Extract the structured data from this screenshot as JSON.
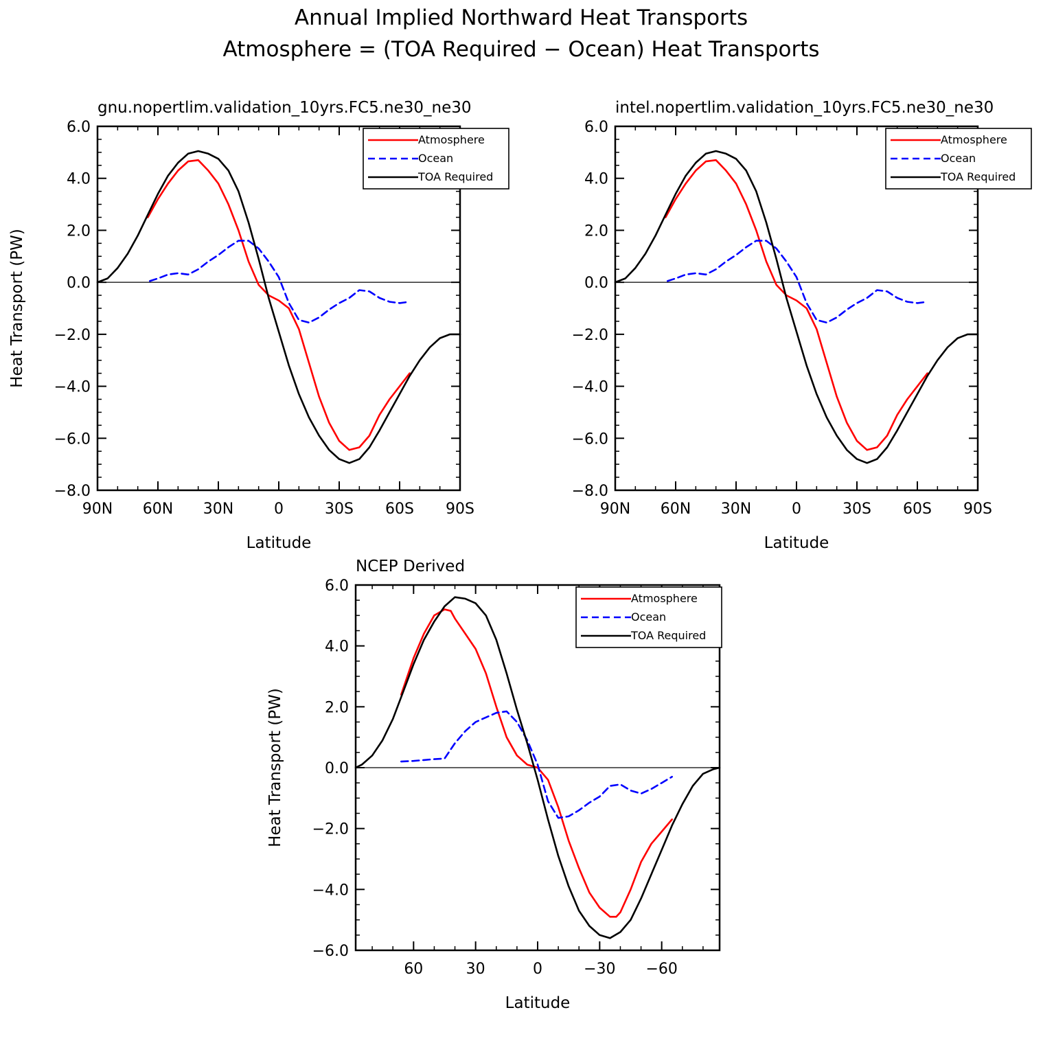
{
  "figure_title": [
    "Annual Implied Northward Heat Transports",
    "Atmosphere = (TOA Required − Ocean) Heat Transports"
  ],
  "legend_labels": [
    "Atmosphere",
    "Ocean",
    "TOA Required"
  ],
  "colors": {
    "atmosphere": "#ff0000",
    "ocean": "#0000ff",
    "toa": "#000000"
  },
  "chart_data": [
    {
      "type": "line",
      "title": "gnu.nopertlim.validation_10yrs.FC5.ne30_ne30",
      "xlabel": "Latitude",
      "ylabel": "Heat Transport (PW)",
      "xlim": [
        90,
        -90
      ],
      "ylim": [
        -8,
        6
      ],
      "xticks": [
        90,
        60,
        30,
        0,
        -30,
        -60,
        -90
      ],
      "xtick_labels": [
        "90N",
        "60N",
        "30N",
        "0",
        "30S",
        "60S",
        "90S"
      ],
      "yticks": [
        6,
        4,
        2,
        0,
        -2,
        -4,
        -6,
        -8
      ],
      "ytick_labels": [
        "6.0",
        "4.0",
        "2.0",
        "0.0",
        "−2.0",
        "−4.0",
        "−6.0",
        "−8.0"
      ],
      "series": [
        {
          "name": "Atmosphere",
          "x": [
            65,
            60,
            55,
            50,
            45,
            40,
            35,
            30,
            25,
            20,
            15,
            10,
            5,
            0,
            -5,
            -10,
            -15,
            -20,
            -25,
            -30,
            -35,
            -40,
            -45,
            -50,
            -55,
            -60,
            -65
          ],
          "values": [
            2.5,
            3.2,
            3.8,
            4.3,
            4.65,
            4.7,
            4.3,
            3.8,
            3.0,
            2.0,
            0.8,
            -0.1,
            -0.5,
            -0.7,
            -1.0,
            -1.8,
            -3.1,
            -4.4,
            -5.4,
            -6.1,
            -6.45,
            -6.35,
            -5.9,
            -5.1,
            -4.5,
            -4.0,
            -3.5
          ]
        },
        {
          "name": "Ocean",
          "x": [
            64,
            60,
            55,
            50,
            45,
            40,
            35,
            30,
            25,
            20,
            15,
            10,
            5,
            0,
            -5,
            -10,
            -15,
            -20,
            -25,
            -30,
            -35,
            -40,
            -45,
            -50,
            -55,
            -60,
            -65
          ],
          "values": [
            0.05,
            0.15,
            0.3,
            0.35,
            0.3,
            0.5,
            0.8,
            1.05,
            1.35,
            1.6,
            1.6,
            1.3,
            0.8,
            0.2,
            -0.8,
            -1.45,
            -1.55,
            -1.35,
            -1.05,
            -0.8,
            -0.6,
            -0.3,
            -0.35,
            -0.6,
            -0.75,
            -0.8,
            -0.75
          ]
        },
        {
          "name": "TOA Required",
          "x": [
            90,
            85,
            80,
            75,
            70,
            65,
            60,
            55,
            50,
            45,
            40,
            35,
            30,
            25,
            20,
            15,
            10,
            5,
            0,
            -5,
            -10,
            -15,
            -20,
            -25,
            -30,
            -35,
            -40,
            -45,
            -50,
            -55,
            -60,
            -65,
            -70,
            -75,
            -80,
            -85,
            -90
          ],
          "values": [
            0.0,
            0.15,
            0.55,
            1.1,
            1.8,
            2.6,
            3.4,
            4.1,
            4.6,
            4.95,
            5.05,
            4.95,
            4.75,
            4.3,
            3.5,
            2.3,
            0.9,
            -0.6,
            -1.9,
            -3.2,
            -4.3,
            -5.2,
            -5.9,
            -6.45,
            -6.8,
            -6.95,
            -6.8,
            -6.35,
            -5.7,
            -5.0,
            -4.3,
            -3.6,
            -3.0,
            -2.5,
            -2.15,
            -2.0,
            -2.0
          ]
        }
      ]
    },
    {
      "type": "line",
      "title": "intel.nopertlim.validation_10yrs.FC5.ne30_ne30",
      "xlabel": "Latitude",
      "ylabel": "",
      "xlim": [
        90,
        -90
      ],
      "ylim": [
        -8,
        6
      ],
      "xticks": [
        90,
        60,
        30,
        0,
        -30,
        -60,
        -90
      ],
      "xtick_labels": [
        "90N",
        "60N",
        "30N",
        "0",
        "30S",
        "60S",
        "90S"
      ],
      "yticks": [
        6,
        4,
        2,
        0,
        -2,
        -4,
        -6,
        -8
      ],
      "ytick_labels": [
        "6.0",
        "4.0",
        "2.0",
        "0.0",
        "−2.0",
        "−4.0",
        "−6.0",
        "−8.0"
      ],
      "series": [
        {
          "name": "Atmosphere",
          "x": [
            65,
            60,
            55,
            50,
            45,
            40,
            35,
            30,
            25,
            20,
            15,
            10,
            5,
            0,
            -5,
            -10,
            -15,
            -20,
            -25,
            -30,
            -35,
            -40,
            -45,
            -50,
            -55,
            -60,
            -65
          ],
          "values": [
            2.5,
            3.2,
            3.8,
            4.3,
            4.65,
            4.7,
            4.3,
            3.8,
            3.0,
            2.0,
            0.8,
            -0.1,
            -0.5,
            -0.7,
            -1.0,
            -1.8,
            -3.1,
            -4.4,
            -5.4,
            -6.1,
            -6.45,
            -6.35,
            -5.9,
            -5.1,
            -4.5,
            -4.0,
            -3.5
          ]
        },
        {
          "name": "Ocean",
          "x": [
            64,
            60,
            55,
            50,
            45,
            40,
            35,
            30,
            25,
            20,
            15,
            10,
            5,
            0,
            -5,
            -10,
            -15,
            -20,
            -25,
            -30,
            -35,
            -40,
            -45,
            -50,
            -55,
            -60,
            -65
          ],
          "values": [
            0.05,
            0.15,
            0.3,
            0.35,
            0.3,
            0.5,
            0.8,
            1.05,
            1.35,
            1.6,
            1.6,
            1.3,
            0.8,
            0.2,
            -0.8,
            -1.45,
            -1.55,
            -1.35,
            -1.05,
            -0.8,
            -0.6,
            -0.3,
            -0.35,
            -0.6,
            -0.75,
            -0.8,
            -0.75
          ]
        },
        {
          "name": "TOA Required",
          "x": [
            90,
            85,
            80,
            75,
            70,
            65,
            60,
            55,
            50,
            45,
            40,
            35,
            30,
            25,
            20,
            15,
            10,
            5,
            0,
            -5,
            -10,
            -15,
            -20,
            -25,
            -30,
            -35,
            -40,
            -45,
            -50,
            -55,
            -60,
            -65,
            -70,
            -75,
            -80,
            -85,
            -90
          ],
          "values": [
            0.0,
            0.15,
            0.55,
            1.1,
            1.8,
            2.6,
            3.4,
            4.1,
            4.6,
            4.95,
            5.05,
            4.95,
            4.75,
            4.3,
            3.5,
            2.3,
            0.9,
            -0.6,
            -1.9,
            -3.2,
            -4.3,
            -5.2,
            -5.9,
            -6.45,
            -6.8,
            -6.95,
            -6.8,
            -6.35,
            -5.7,
            -5.0,
            -4.3,
            -3.6,
            -3.0,
            -2.5,
            -2.15,
            -2.0,
            -2.0
          ]
        }
      ]
    },
    {
      "type": "line",
      "title": "NCEP Derived",
      "xlabel": "Latitude",
      "ylabel": "Heat Transport (PW)",
      "xlim": [
        88,
        -88
      ],
      "ylim": [
        -6,
        6
      ],
      "xticks": [
        60,
        30,
        0,
        -30,
        -60
      ],
      "xtick_labels": [
        "60",
        "30",
        "0",
        "−30",
        "−60"
      ],
      "yticks": [
        6,
        4,
        2,
        0,
        -2,
        -4,
        -6
      ],
      "ytick_labels": [
        "6.0",
        "4.0",
        "2.0",
        "0.0",
        "−2.0",
        "−4.0",
        "−6.0"
      ],
      "series": [
        {
          "name": "Atmosphere",
          "x": [
            66,
            60,
            55,
            50,
            45,
            42,
            40,
            35,
            30,
            25,
            20,
            15,
            10,
            5,
            0,
            -5,
            -10,
            -15,
            -20,
            -25,
            -30,
            -35,
            -38,
            -40,
            -45,
            -50,
            -55,
            -60,
            -65
          ],
          "values": [
            2.4,
            3.6,
            4.4,
            5.0,
            5.2,
            5.15,
            4.9,
            4.4,
            3.9,
            3.1,
            2.0,
            1.0,
            0.4,
            0.1,
            0.0,
            -0.4,
            -1.3,
            -2.4,
            -3.3,
            -4.1,
            -4.6,
            -4.9,
            -4.9,
            -4.75,
            -4.0,
            -3.1,
            -2.5,
            -2.1,
            -1.7
          ]
        },
        {
          "name": "Ocean",
          "x": [
            66,
            60,
            55,
            50,
            45,
            40,
            35,
            30,
            25,
            20,
            15,
            10,
            5,
            0,
            -5,
            -10,
            -15,
            -20,
            -25,
            -30,
            -35,
            -40,
            -45,
            -50,
            -55,
            -60,
            -65
          ],
          "values": [
            0.2,
            0.22,
            0.25,
            0.28,
            0.3,
            0.8,
            1.2,
            1.5,
            1.65,
            1.8,
            1.85,
            1.5,
            0.9,
            0.1,
            -1.1,
            -1.65,
            -1.6,
            -1.4,
            -1.15,
            -0.95,
            -0.6,
            -0.55,
            -0.75,
            -0.85,
            -0.7,
            -0.5,
            -0.3
          ]
        },
        {
          "name": "TOA Required",
          "x": [
            88,
            85,
            80,
            75,
            70,
            65,
            60,
            55,
            50,
            45,
            40,
            35,
            30,
            25,
            20,
            15,
            10,
            5,
            0,
            -5,
            -10,
            -15,
            -20,
            -25,
            -30,
            -35,
            -40,
            -45,
            -50,
            -55,
            -60,
            -65,
            -70,
            -75,
            -80,
            -85,
            -88
          ],
          "values": [
            0.0,
            0.1,
            0.4,
            0.9,
            1.6,
            2.5,
            3.4,
            4.2,
            4.8,
            5.3,
            5.6,
            5.55,
            5.4,
            5.0,
            4.2,
            3.1,
            1.9,
            0.8,
            -0.4,
            -1.7,
            -2.9,
            -3.9,
            -4.7,
            -5.2,
            -5.5,
            -5.6,
            -5.4,
            -5.0,
            -4.3,
            -3.5,
            -2.7,
            -1.9,
            -1.2,
            -0.6,
            -0.2,
            -0.05,
            0.0
          ]
        }
      ]
    }
  ]
}
